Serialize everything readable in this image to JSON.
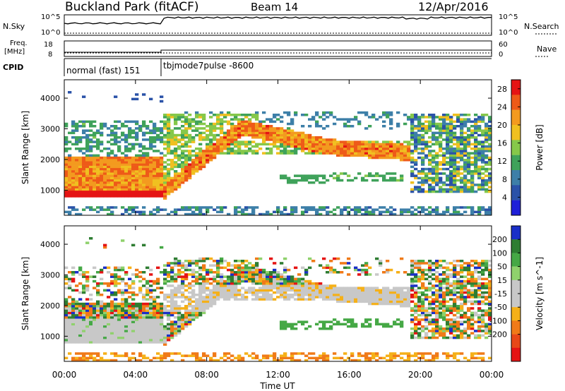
{
  "header": {
    "title": "Buckland Park (fitACF)",
    "beam": "Beam 14",
    "date": "12/Apr/2016"
  },
  "aux_panels": {
    "nsky_label": "N.Sky",
    "nsearch_label": "N.Search",
    "freq_label_line1": "Freq.",
    "freq_label_line2": "[MHz]",
    "nave_label": "Nave",
    "cpid_label": "CPID",
    "noise_ticks_left": [
      "10^5",
      "10^0"
    ],
    "noise_ticks_right": [
      "10^5",
      "10^0"
    ],
    "freq_ticks": [
      "18",
      "8"
    ],
    "nave_ticks": [
      "60",
      "0"
    ],
    "cpid_entries": [
      {
        "label": "normal (fast) 151",
        "start_hour": 0
      },
      {
        "label": "tbjmode7pulse -8600",
        "start_hour": 5.5
      }
    ]
  },
  "colors": {
    "power": [
      "#1f1fd8",
      "#2a52a8",
      "#3d7fa8",
      "#3fa25a",
      "#86c84a",
      "#f0c020",
      "#f39a1f",
      "#ee5a18",
      "#e51414"
    ],
    "velocity": [
      "#1a2fc8",
      "#2e7d32",
      "#45a845",
      "#8fd16c",
      "#c8c8c8",
      "#c8c8c8",
      "#f5b018",
      "#f07a18",
      "#e84818",
      "#e51414"
    ]
  },
  "chart_data": [
    {
      "type": "heatmap",
      "panel": "power",
      "xlabel": "Time UT",
      "ylabel": "Slant Range [km]",
      "x_ticks": [
        "00:00",
        "04:00",
        "08:00",
        "12:00",
        "16:00",
        "20:00",
        "00:00"
      ],
      "xlim": [
        0,
        24
      ],
      "y_ticks": [
        1000,
        2000,
        3000,
        4000
      ],
      "ylim": [
        180,
        4600
      ],
      "colorbar_label": "Power [dB]",
      "colorbar_ticks": [
        4,
        8,
        12,
        16,
        20,
        24,
        28
      ],
      "clim": [
        0,
        30
      ]
    },
    {
      "type": "heatmap",
      "panel": "velocity",
      "xlabel": "Time UT",
      "ylabel": "Slant Range [km]",
      "x_ticks": [
        "00:00",
        "04:00",
        "08:00",
        "12:00",
        "16:00",
        "20:00",
        "00:00"
      ],
      "xlim": [
        0,
        24
      ],
      "y_ticks": [
        1000,
        2000,
        3000,
        4000
      ],
      "ylim": [
        180,
        4600
      ],
      "colorbar_label": "Velocity [m s^-1]",
      "colorbar_ticks": [
        200,
        100,
        50,
        15,
        -15,
        -50,
        -100,
        -200
      ],
      "clim": [
        -250,
        250
      ]
    }
  ]
}
